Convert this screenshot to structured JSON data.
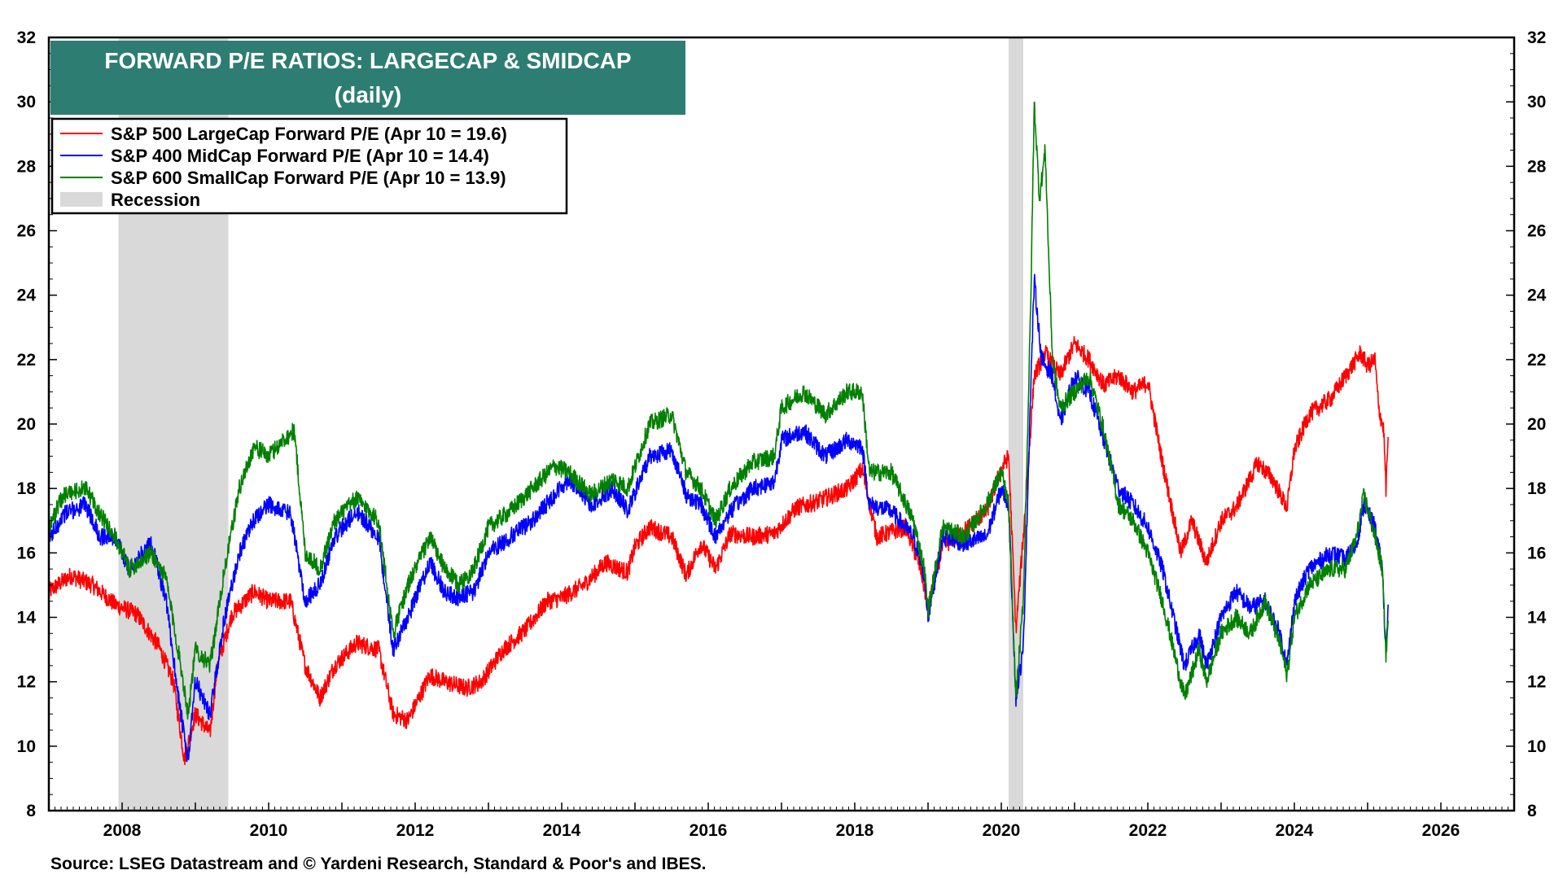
{
  "chart_data": {
    "type": "line",
    "title": "FORWARD P/E RATIOS: LARGECAP & SMIDCAP",
    "subtitle": "(daily)",
    "source": "Source: LSEG Datastream and © Yardeni Research, Standard & Poor's and IBES.",
    "xlim": [
      2007.0,
      2027.0
    ],
    "ylim": [
      8,
      32
    ],
    "x_ticks": [
      2008,
      2010,
      2012,
      2014,
      2016,
      2018,
      2020,
      2022,
      2024,
      2026
    ],
    "y_ticks": [
      8,
      10,
      12,
      14,
      16,
      18,
      20,
      22,
      24,
      26,
      28,
      30,
      32
    ],
    "legend_position": "top-left",
    "colors": {
      "title_bg": "#2e7d72",
      "recession": "#d9d9d9"
    },
    "recessions": [
      {
        "label": "Recession",
        "start": 2007.95,
        "end": 2009.45
      },
      {
        "label": "Recession",
        "start": 2020.1,
        "end": 2020.3
      }
    ],
    "series": [
      {
        "name": "S&P 500 LargeCap Forward P/E (Apr 10 = 19.6)",
        "color": "#ff0000",
        "points": [
          [
            2007.0,
            14.8
          ],
          [
            2007.3,
            15.3
          ],
          [
            2007.6,
            15.0
          ],
          [
            2007.9,
            14.4
          ],
          [
            2008.2,
            14.1
          ],
          [
            2008.5,
            13.1
          ],
          [
            2008.7,
            12.0
          ],
          [
            2008.85,
            9.6
          ],
          [
            2009.0,
            11.0
          ],
          [
            2009.2,
            10.4
          ],
          [
            2009.3,
            12.5
          ],
          [
            2009.5,
            14.1
          ],
          [
            2009.8,
            14.8
          ],
          [
            2010.0,
            14.5
          ],
          [
            2010.3,
            14.5
          ],
          [
            2010.5,
            12.5
          ],
          [
            2010.7,
            11.5
          ],
          [
            2010.9,
            12.5
          ],
          [
            2011.2,
            13.2
          ],
          [
            2011.5,
            13.0
          ],
          [
            2011.7,
            11.0
          ],
          [
            2011.9,
            10.8
          ],
          [
            2012.2,
            12.2
          ],
          [
            2012.4,
            12.0
          ],
          [
            2012.7,
            11.8
          ],
          [
            2012.9,
            12.0
          ],
          [
            2013.2,
            13.0
          ],
          [
            2013.5,
            13.6
          ],
          [
            2013.8,
            14.5
          ],
          [
            2014.0,
            14.6
          ],
          [
            2014.3,
            15.0
          ],
          [
            2014.6,
            15.7
          ],
          [
            2014.9,
            15.4
          ],
          [
            2015.0,
            16.2
          ],
          [
            2015.2,
            16.8
          ],
          [
            2015.5,
            16.5
          ],
          [
            2015.7,
            15.3
          ],
          [
            2015.9,
            16.3
          ],
          [
            2016.1,
            15.5
          ],
          [
            2016.3,
            16.6
          ],
          [
            2016.6,
            16.5
          ],
          [
            2016.9,
            16.6
          ],
          [
            2017.2,
            17.4
          ],
          [
            2017.5,
            17.6
          ],
          [
            2017.9,
            18.0
          ],
          [
            2018.1,
            18.6
          ],
          [
            2018.3,
            16.5
          ],
          [
            2018.7,
            16.8
          ],
          [
            2018.9,
            15.5
          ],
          [
            2019.0,
            14.3
          ],
          [
            2019.2,
            16.2
          ],
          [
            2019.5,
            16.7
          ],
          [
            2019.8,
            17.3
          ],
          [
            2020.0,
            18.6
          ],
          [
            2020.1,
            19.0
          ],
          [
            2020.2,
            13.6
          ],
          [
            2020.3,
            16.5
          ],
          [
            2020.45,
            21.5
          ],
          [
            2020.6,
            22.2
          ],
          [
            2020.8,
            21.5
          ],
          [
            2021.0,
            22.5
          ],
          [
            2021.2,
            22.0
          ],
          [
            2021.4,
            21.2
          ],
          [
            2021.6,
            21.5
          ],
          [
            2021.8,
            21.0
          ],
          [
            2022.0,
            21.3
          ],
          [
            2022.2,
            18.8
          ],
          [
            2022.45,
            16.0
          ],
          [
            2022.6,
            17.0
          ],
          [
            2022.8,
            15.7
          ],
          [
            2023.0,
            17.0
          ],
          [
            2023.2,
            17.4
          ],
          [
            2023.5,
            18.8
          ],
          [
            2023.7,
            18.3
          ],
          [
            2023.9,
            17.4
          ],
          [
            2024.0,
            19.2
          ],
          [
            2024.2,
            20.3
          ],
          [
            2024.5,
            20.8
          ],
          [
            2024.7,
            21.5
          ],
          [
            2024.9,
            22.2
          ],
          [
            2025.0,
            21.8
          ],
          [
            2025.1,
            22.0
          ],
          [
            2025.15,
            20.5
          ],
          [
            2025.22,
            19.8
          ],
          [
            2025.25,
            18.0
          ],
          [
            2025.28,
            19.6
          ]
        ]
      },
      {
        "name": "S&P 400 MidCap Forward P/E (Apr 10 = 14.4)",
        "color": "#0000ff",
        "points": [
          [
            2007.0,
            16.4
          ],
          [
            2007.2,
            17.2
          ],
          [
            2007.5,
            17.5
          ],
          [
            2007.7,
            16.5
          ],
          [
            2007.9,
            16.5
          ],
          [
            2008.1,
            15.5
          ],
          [
            2008.4,
            16.3
          ],
          [
            2008.6,
            14.5
          ],
          [
            2008.8,
            11.0
          ],
          [
            2008.9,
            9.5
          ],
          [
            2009.0,
            12.0
          ],
          [
            2009.2,
            11.0
          ],
          [
            2009.4,
            14.0
          ],
          [
            2009.6,
            16.0
          ],
          [
            2009.8,
            17.0
          ],
          [
            2010.0,
            17.5
          ],
          [
            2010.3,
            17.2
          ],
          [
            2010.5,
            14.5
          ],
          [
            2010.7,
            15.0
          ],
          [
            2010.9,
            16.5
          ],
          [
            2011.2,
            17.3
          ],
          [
            2011.5,
            16.5
          ],
          [
            2011.7,
            13.0
          ],
          [
            2011.9,
            14.0
          ],
          [
            2012.2,
            15.7
          ],
          [
            2012.4,
            14.8
          ],
          [
            2012.6,
            14.6
          ],
          [
            2012.8,
            14.8
          ],
          [
            2013.0,
            16.0
          ],
          [
            2013.3,
            16.5
          ],
          [
            2013.6,
            17.0
          ],
          [
            2013.9,
            17.8
          ],
          [
            2014.1,
            18.3
          ],
          [
            2014.4,
            17.5
          ],
          [
            2014.7,
            18.0
          ],
          [
            2014.9,
            17.3
          ],
          [
            2015.2,
            19.0
          ],
          [
            2015.5,
            19.2
          ],
          [
            2015.7,
            17.8
          ],
          [
            2015.9,
            17.5
          ],
          [
            2016.1,
            16.5
          ],
          [
            2016.3,
            17.3
          ],
          [
            2016.6,
            18.0
          ],
          [
            2016.9,
            18.2
          ],
          [
            2017.0,
            19.5
          ],
          [
            2017.3,
            19.8
          ],
          [
            2017.6,
            19.0
          ],
          [
            2017.9,
            19.5
          ],
          [
            2018.1,
            19.3
          ],
          [
            2018.2,
            17.5
          ],
          [
            2018.5,
            17.3
          ],
          [
            2018.8,
            16.5
          ],
          [
            2018.95,
            15.3
          ],
          [
            2019.0,
            14.0
          ],
          [
            2019.2,
            16.5
          ],
          [
            2019.5,
            16.3
          ],
          [
            2019.8,
            16.5
          ],
          [
            2020.0,
            18.0
          ],
          [
            2020.1,
            17.5
          ],
          [
            2020.2,
            11.5
          ],
          [
            2020.3,
            13.0
          ],
          [
            2020.4,
            21.0
          ],
          [
            2020.45,
            24.5
          ],
          [
            2020.55,
            22.0
          ],
          [
            2020.7,
            21.5
          ],
          [
            2020.8,
            20.0
          ],
          [
            2021.0,
            21.5
          ],
          [
            2021.2,
            21.0
          ],
          [
            2021.4,
            19.5
          ],
          [
            2021.6,
            18.0
          ],
          [
            2021.8,
            17.5
          ],
          [
            2022.0,
            16.8
          ],
          [
            2022.2,
            15.5
          ],
          [
            2022.5,
            12.5
          ],
          [
            2022.7,
            13.5
          ],
          [
            2022.8,
            12.5
          ],
          [
            2023.0,
            14.0
          ],
          [
            2023.2,
            14.8
          ],
          [
            2023.4,
            14.3
          ],
          [
            2023.6,
            14.5
          ],
          [
            2023.8,
            13.5
          ],
          [
            2023.9,
            12.5
          ],
          [
            2024.0,
            14.5
          ],
          [
            2024.2,
            15.5
          ],
          [
            2024.5,
            16.0
          ],
          [
            2024.7,
            15.8
          ],
          [
            2024.85,
            16.3
          ],
          [
            2024.95,
            17.5
          ],
          [
            2025.1,
            16.8
          ],
          [
            2025.2,
            15.5
          ],
          [
            2025.25,
            13.0
          ],
          [
            2025.28,
            14.4
          ]
        ]
      },
      {
        "name": "S&P 600 SmallCap Forward P/E (Apr 10 = 13.9)",
        "color": "#008000",
        "points": [
          [
            2007.0,
            16.8
          ],
          [
            2007.2,
            17.8
          ],
          [
            2007.5,
            18.0
          ],
          [
            2007.7,
            17.2
          ],
          [
            2007.9,
            16.5
          ],
          [
            2008.1,
            15.5
          ],
          [
            2008.4,
            16.0
          ],
          [
            2008.6,
            15.2
          ],
          [
            2008.8,
            12.5
          ],
          [
            2008.9,
            11.0
          ],
          [
            2009.0,
            13.0
          ],
          [
            2009.2,
            12.5
          ],
          [
            2009.4,
            15.5
          ],
          [
            2009.6,
            18.0
          ],
          [
            2009.8,
            19.3
          ],
          [
            2010.0,
            19.0
          ],
          [
            2010.2,
            19.5
          ],
          [
            2010.35,
            19.8
          ],
          [
            2010.5,
            16.0
          ],
          [
            2010.7,
            15.5
          ],
          [
            2010.9,
            17.0
          ],
          [
            2011.2,
            17.7
          ],
          [
            2011.5,
            17.0
          ],
          [
            2011.7,
            13.5
          ],
          [
            2011.9,
            15.0
          ],
          [
            2012.2,
            16.5
          ],
          [
            2012.4,
            15.5
          ],
          [
            2012.6,
            15.0
          ],
          [
            2012.8,
            15.5
          ],
          [
            2013.0,
            16.8
          ],
          [
            2013.3,
            17.3
          ],
          [
            2013.6,
            18.0
          ],
          [
            2013.9,
            18.7
          ],
          [
            2014.1,
            18.5
          ],
          [
            2014.4,
            17.8
          ],
          [
            2014.7,
            18.3
          ],
          [
            2014.9,
            18.0
          ],
          [
            2015.2,
            20.0
          ],
          [
            2015.5,
            20.3
          ],
          [
            2015.7,
            18.5
          ],
          [
            2015.9,
            18.0
          ],
          [
            2016.1,
            17.0
          ],
          [
            2016.3,
            18.0
          ],
          [
            2016.6,
            18.8
          ],
          [
            2016.9,
            19.0
          ],
          [
            2017.0,
            20.5
          ],
          [
            2017.3,
            21.0
          ],
          [
            2017.6,
            20.3
          ],
          [
            2017.9,
            21.0
          ],
          [
            2018.1,
            21.0
          ],
          [
            2018.2,
            18.5
          ],
          [
            2018.5,
            18.5
          ],
          [
            2018.8,
            17.0
          ],
          [
            2018.95,
            15.5
          ],
          [
            2019.0,
            14.2
          ],
          [
            2019.2,
            16.8
          ],
          [
            2019.5,
            16.5
          ],
          [
            2019.8,
            17.5
          ],
          [
            2020.0,
            18.5
          ],
          [
            2020.1,
            17.5
          ],
          [
            2020.2,
            11.5
          ],
          [
            2020.3,
            14.5
          ],
          [
            2020.4,
            23.5
          ],
          [
            2020.45,
            30.0
          ],
          [
            2020.52,
            27.0
          ],
          [
            2020.6,
            28.5
          ],
          [
            2020.65,
            25.0
          ],
          [
            2020.7,
            22.0
          ],
          [
            2020.8,
            20.5
          ],
          [
            2021.0,
            21.0
          ],
          [
            2021.2,
            21.5
          ],
          [
            2021.4,
            19.8
          ],
          [
            2021.6,
            17.5
          ],
          [
            2021.8,
            17.0
          ],
          [
            2022.0,
            16.0
          ],
          [
            2022.2,
            14.5
          ],
          [
            2022.5,
            11.5
          ],
          [
            2022.7,
            13.0
          ],
          [
            2022.8,
            12.0
          ],
          [
            2023.0,
            13.5
          ],
          [
            2023.2,
            14.0
          ],
          [
            2023.4,
            13.5
          ],
          [
            2023.6,
            14.5
          ],
          [
            2023.8,
            13.2
          ],
          [
            2023.9,
            12.2
          ],
          [
            2024.0,
            14.0
          ],
          [
            2024.2,
            15.0
          ],
          [
            2024.5,
            15.5
          ],
          [
            2024.7,
            15.5
          ],
          [
            2024.85,
            16.5
          ],
          [
            2024.95,
            17.8
          ],
          [
            2025.1,
            16.5
          ],
          [
            2025.2,
            15.5
          ],
          [
            2025.25,
            12.8
          ],
          [
            2025.28,
            13.9
          ]
        ]
      }
    ],
    "legend": [
      {
        "label": "S&P 500 LargeCap Forward P/E (Apr 10 = 19.6)",
        "kind": "line",
        "color": "#ff0000"
      },
      {
        "label": "S&P 400 MidCap Forward P/E (Apr 10 = 14.4)",
        "kind": "line",
        "color": "#0000ff"
      },
      {
        "label": "S&P 600 SmallCap Forward P/E (Apr 10 = 13.9)",
        "kind": "line",
        "color": "#008000"
      },
      {
        "label": "Recession",
        "kind": "box",
        "color": "#d9d9d9"
      }
    ]
  }
}
